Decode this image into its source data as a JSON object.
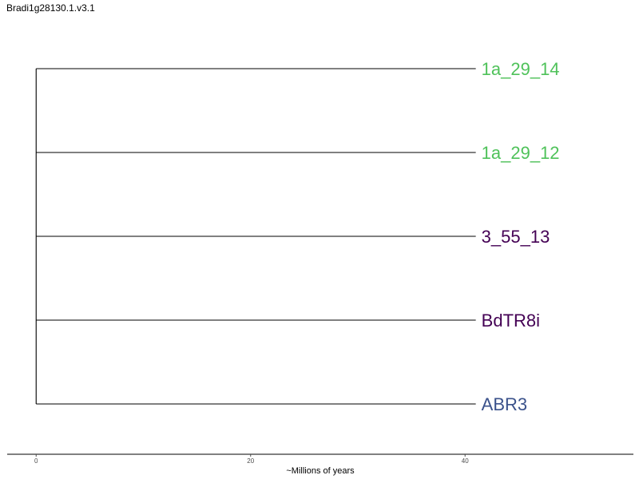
{
  "chart_data": {
    "type": "dendrogram",
    "title": "Bradi1g28130.1.v3.1",
    "xlabel": "~Millions of years",
    "xlim": [
      -2.7,
      55.7
    ],
    "xticks": [
      0,
      20,
      40
    ],
    "root_x": 0,
    "leaves": [
      {
        "name": "1a_29_14",
        "x": 41,
        "color": "#4fc25a"
      },
      {
        "name": "1a_29_12",
        "x": 41,
        "color": "#4fc25a"
      },
      {
        "name": "3_55_13",
        "x": 41,
        "color": "#440154"
      },
      {
        "name": "BdTR8i",
        "x": 41,
        "color": "#440154"
      },
      {
        "name": "ABR3",
        "x": 41,
        "color": "#3b528b"
      }
    ],
    "colors": {
      "branch": "#000000",
      "axis": "#000000",
      "tick_label": "#4d4d4d"
    }
  }
}
